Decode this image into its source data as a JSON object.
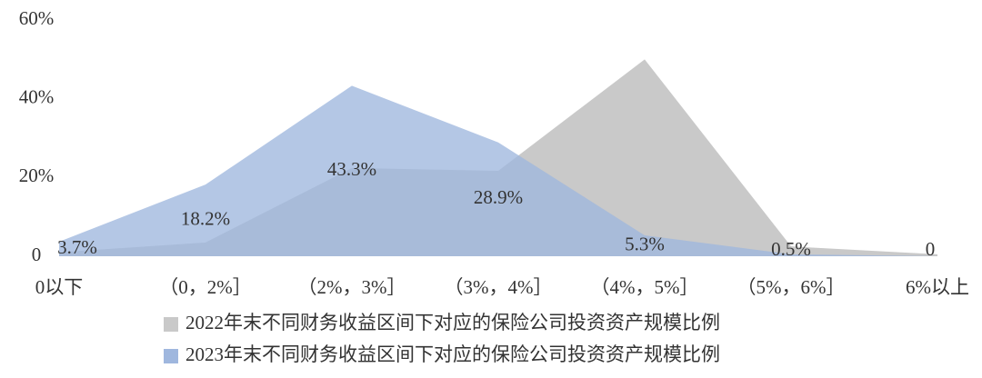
{
  "chart_data": {
    "type": "area",
    "categories": [
      "0以下",
      "（0，2%］",
      "（2%，3%］",
      "（3%，4%］",
      "（4%，5%］",
      "（5%，6%］",
      "6%以上"
    ],
    "series": [
      {
        "name": "2022年末不同财务收益区间下对应的保险公司投资资产规模比例",
        "color": "#c9c9c9",
        "values": [
          1,
          3.5,
          22.4,
          21.7,
          50,
          2.5,
          0.5
        ]
      },
      {
        "name": "2023年末不同财务收益区间下对应的保险公司投资资产规模比例",
        "color": "#9fb7de",
        "values": [
          3.7,
          18.2,
          43.3,
          28.9,
          5.3,
          0.5,
          0
        ],
        "value_labels": [
          "3.7%",
          "18.2%",
          "43.3%",
          "28.9%",
          "5.3%",
          "0.5%",
          "0"
        ]
      }
    ],
    "ylim": [
      0,
      60
    ],
    "yticks": [
      0,
      {
        "value": 20,
        "label": "20%"
      },
      {
        "value": 40,
        "label": "40%"
      },
      {
        "value": 60,
        "label": "60%"
      }
    ]
  }
}
